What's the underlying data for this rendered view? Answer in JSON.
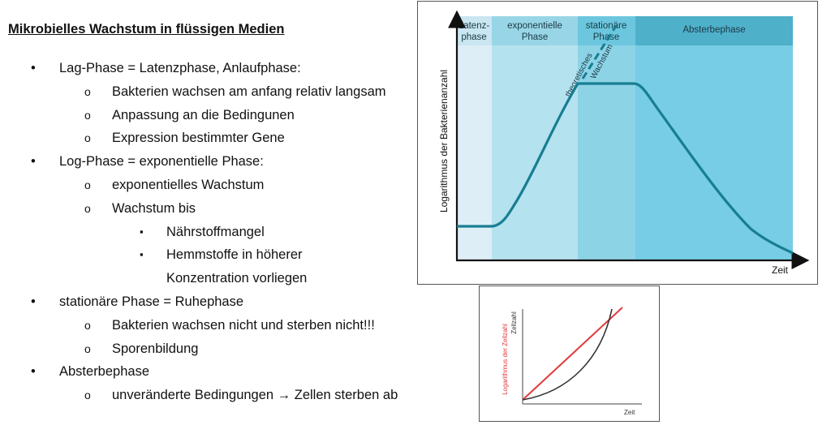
{
  "title": "Mikrobielles Wachstum in flüssigen Medien",
  "outline": [
    {
      "text": "Lag-Phase = Latenzphase, Anlaufphase:",
      "level": 1
    },
    {
      "text": "Bakterien wachsen am anfang relativ langsam",
      "level": 2
    },
    {
      "text": "Anpassung an die Bedingunen",
      "level": 2
    },
    {
      "text": "Expression bestimmter Gene",
      "level": 2
    },
    {
      "text": "Log-Phase = exponentielle Phase:",
      "level": 1
    },
    {
      "text": "exponentielles Wachstum",
      "level": 2
    },
    {
      "text": "Wachstum bis",
      "level": 2
    },
    {
      "text": "Nährstoffmangel",
      "level": 3
    },
    {
      "text": "Hemmstoffe in höherer",
      "level": 3
    },
    {
      "text": "Konzentration vorliegen",
      "level": 3,
      "continuation": true
    },
    {
      "text": "stationäre Phase = Ruhephase",
      "level": 1
    },
    {
      "text": "Bakterien wachsen nicht und sterben nicht!!!",
      "level": 2
    },
    {
      "text": "Sporenbildung",
      "level": 2
    },
    {
      "text": "Absterbephase",
      "level": 1
    },
    {
      "text": "unveränderte Bedingungen → Zellen sterben ab",
      "level": 2
    }
  ],
  "bullets": {
    "1": "•",
    "2": "o",
    "3": "▪"
  },
  "growth_figure": {
    "ylabel": "Logarithmus der Bakterienanzahl",
    "xlabel": "Zeit",
    "phases": [
      {
        "line1": "Latenz-",
        "line2": "phase",
        "fill": "#ddeef7",
        "header": "#c9e6f1"
      },
      {
        "line1": "exponentielle",
        "line2": "Phase",
        "fill": "#b5e2ef",
        "header": "#98d6e7"
      },
      {
        "line1": "stationäre",
        "line2": "Phase",
        "fill": "#8dd3e6",
        "header": "#6cc7de"
      },
      {
        "line1": "Absterbephase",
        "line2": "",
        "fill": "#76cde5",
        "header": "#4fb0ca"
      }
    ],
    "theory_label_1": "theoretisches",
    "theory_label_2": "Wachstum",
    "curve_color": "#177e92"
  },
  "small_figure": {
    "ylabel_red": "Logarithmus der Zellzahl",
    "ylabel_black": "Zellzahl",
    "xlabel": "Zeit",
    "red": "#e23a3a",
    "black": "#333333"
  }
}
